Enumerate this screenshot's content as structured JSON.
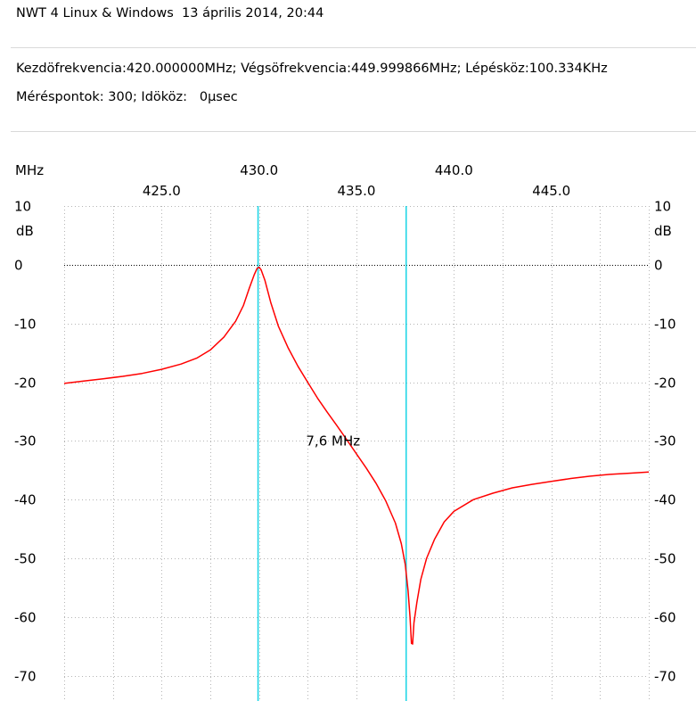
{
  "header": {
    "title": "NWT 4 Linux & Windows  13 április 2014, 20:44",
    "params_line1": "Kezdöfrekvencia:420.000000MHz; Végsöfrekvencia:449.999866MHz; Lépésköz:100.334KHz",
    "params_line2": "Méréspontok: 300; Idököz:   0µsec"
  },
  "colors": {
    "trace": "#ff0000",
    "marker": "#22d6e6",
    "grid": "#b5b5b5",
    "zero_line": "#000000"
  },
  "chart_data": {
    "type": "line",
    "title": "",
    "xlabel": "MHz",
    "ylabel": "dB",
    "xlim": [
      420.0,
      450.0
    ],
    "ylim": [
      -72,
      10
    ],
    "x_ticks_top": [
      {
        "value": 430.0,
        "label": "430.0"
      },
      {
        "value": 440.0,
        "label": "440.0"
      }
    ],
    "x_ticks_bottom": [
      {
        "value": 425.0,
        "label": "425.0"
      },
      {
        "value": 435.0,
        "label": "435.0"
      },
      {
        "value": 445.0,
        "label": "445.0"
      }
    ],
    "y_ticks": [
      {
        "value": 10,
        "label": "10"
      },
      {
        "value": 0,
        "label": "0"
      },
      {
        "value": -10,
        "label": "-10"
      },
      {
        "value": -20,
        "label": "-20"
      },
      {
        "value": -30,
        "label": "-30"
      },
      {
        "value": -40,
        "label": "-40"
      },
      {
        "value": -50,
        "label": "-50"
      },
      {
        "value": -60,
        "label": "-60"
      },
      {
        "value": -70,
        "label": "-70"
      }
    ],
    "grid": true,
    "series": [
      {
        "points": [
          [
            420.0,
            -20.2
          ],
          [
            421.0,
            -19.8
          ],
          [
            422.0,
            -19.4
          ],
          [
            423.0,
            -19.0
          ],
          [
            424.0,
            -18.5
          ],
          [
            425.0,
            -17.8
          ],
          [
            426.0,
            -16.9
          ],
          [
            426.8,
            -15.9
          ],
          [
            427.5,
            -14.5
          ],
          [
            428.2,
            -12.3
          ],
          [
            428.8,
            -9.6
          ],
          [
            429.2,
            -6.9
          ],
          [
            429.5,
            -4.0
          ],
          [
            429.75,
            -1.7
          ],
          [
            429.9,
            -0.6
          ],
          [
            430.0,
            -0.4
          ],
          [
            430.1,
            -0.8
          ],
          [
            430.3,
            -2.6
          ],
          [
            430.6,
            -6.4
          ],
          [
            431.0,
            -10.5
          ],
          [
            431.5,
            -14.2
          ],
          [
            432.0,
            -17.3
          ],
          [
            432.5,
            -20.0
          ],
          [
            433.0,
            -22.7
          ],
          [
            433.5,
            -25.1
          ],
          [
            434.0,
            -27.4
          ],
          [
            434.5,
            -29.8
          ],
          [
            435.0,
            -32.2
          ],
          [
            435.5,
            -34.6
          ],
          [
            436.0,
            -37.2
          ],
          [
            436.5,
            -40.2
          ],
          [
            437.0,
            -44.0
          ],
          [
            437.3,
            -47.5
          ],
          [
            437.5,
            -51.0
          ],
          [
            437.65,
            -55.5
          ],
          [
            437.75,
            -60.0
          ],
          [
            437.82,
            -64.5
          ],
          [
            437.88,
            -64.6
          ],
          [
            437.95,
            -61.0
          ],
          [
            438.1,
            -57.5
          ],
          [
            438.3,
            -53.6
          ],
          [
            438.6,
            -50.0
          ],
          [
            439.0,
            -46.8
          ],
          [
            439.5,
            -43.8
          ],
          [
            440.0,
            -42.0
          ],
          [
            441.0,
            -40.0
          ],
          [
            442.0,
            -38.9
          ],
          [
            443.0,
            -38.0
          ],
          [
            444.0,
            -37.4
          ],
          [
            445.0,
            -36.9
          ],
          [
            446.0,
            -36.4
          ],
          [
            447.0,
            -36.0
          ],
          [
            448.0,
            -35.7
          ],
          [
            449.0,
            -35.5
          ],
          [
            450.0,
            -35.3
          ]
        ]
      }
    ],
    "markers": [
      {
        "x": 429.95
      },
      {
        "x": 437.55
      }
    ],
    "annotations": [
      {
        "text": "7,6 MHz",
        "x": 433.8,
        "y": -30
      }
    ]
  }
}
